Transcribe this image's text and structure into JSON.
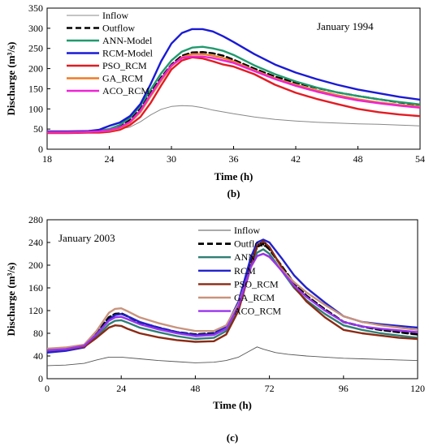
{
  "chart_data": [
    {
      "id": "b",
      "type": "line",
      "label": "(b)",
      "annotation": "January  1994",
      "xlabel": "Time (h)",
      "ylabel": "Discharge (m³/s)",
      "xlim": [
        18,
        54
      ],
      "ylim": [
        0,
        350
      ],
      "xticks": [
        18,
        24,
        30,
        36,
        42,
        48,
        54
      ],
      "yticks": [
        0,
        50,
        100,
        150,
        200,
        250,
        300,
        350
      ],
      "grid": false,
      "legend_position": "top-left",
      "series": [
        {
          "name": "Inflow",
          "color": "#888888",
          "width": 1.0,
          "dash": "",
          "x": [
            18,
            20,
            22,
            24,
            26,
            27,
            28,
            29,
            30,
            31,
            32,
            33,
            34,
            36,
            38,
            40,
            42,
            44,
            46,
            48,
            50,
            52,
            54
          ],
          "y": [
            43,
            43,
            44,
            46,
            55,
            68,
            85,
            99,
            106,
            108,
            107,
            103,
            97,
            88,
            80,
            74,
            70,
            67,
            65,
            63,
            62,
            60,
            58
          ]
        },
        {
          "name": "Outflow",
          "color": "#000000",
          "width": 2.4,
          "dash": "7,4",
          "x": [
            18,
            20,
            22,
            23,
            24,
            25,
            26,
            27,
            28,
            29,
            30,
            31,
            32,
            33,
            34,
            35,
            36,
            38,
            40,
            42,
            44,
            46,
            48,
            50,
            52,
            54
          ],
          "y": [
            43,
            43,
            44,
            45,
            48,
            56,
            72,
            100,
            140,
            178,
            210,
            232,
            240,
            241,
            238,
            232,
            222,
            200,
            180,
            165,
            152,
            141,
            132,
            124,
            116,
            110
          ]
        },
        {
          "name": "ANN-Model",
          "color": "#1f9a6e",
          "width": 2.4,
          "dash": "",
          "x": [
            18,
            20,
            22,
            23,
            24,
            25,
            26,
            27,
            28,
            29,
            30,
            31,
            32,
            33,
            34,
            35,
            36,
            38,
            40,
            42,
            44,
            46,
            48,
            50,
            52,
            54
          ],
          "y": [
            44,
            44,
            45,
            46,
            50,
            60,
            78,
            108,
            148,
            188,
            220,
            242,
            252,
            254,
            250,
            244,
            234,
            208,
            186,
            168,
            153,
            141,
            132,
            124,
            117,
            111
          ]
        },
        {
          "name": "RCM-Model",
          "color": "#1a1ad6",
          "width": 2.4,
          "dash": "",
          "x": [
            18,
            20,
            22,
            23,
            24,
            25,
            26,
            27,
            28,
            29,
            30,
            31,
            32,
            33,
            34,
            35,
            36,
            38,
            40,
            42,
            44,
            46,
            48,
            50,
            52,
            54
          ],
          "y": [
            44,
            44,
            45,
            48,
            58,
            66,
            82,
            112,
            162,
            218,
            262,
            288,
            298,
            298,
            292,
            280,
            266,
            236,
            210,
            190,
            174,
            160,
            148,
            139,
            130,
            123
          ]
        },
        {
          "name": "PSO_RCM",
          "color": "#e31b23",
          "width": 2.4,
          "dash": "",
          "x": [
            18,
            20,
            22,
            23,
            24,
            25,
            26,
            27,
            28,
            29,
            30,
            31,
            32,
            33,
            34,
            35,
            36,
            38,
            40,
            42,
            44,
            46,
            48,
            50,
            52,
            54
          ],
          "y": [
            40,
            40,
            41,
            41,
            43,
            48,
            60,
            80,
            115,
            158,
            198,
            220,
            228,
            225,
            218,
            210,
            205,
            186,
            160,
            140,
            125,
            112,
            100,
            92,
            86,
            82
          ]
        },
        {
          "name": "GA_RCM",
          "color": "#f07a26",
          "width": 2.4,
          "dash": "",
          "x": [
            18,
            20,
            22,
            23,
            24,
            25,
            26,
            27,
            28,
            29,
            30,
            31,
            32,
            33,
            34,
            35,
            36,
            38,
            40,
            42,
            44,
            46,
            48,
            50,
            52,
            54
          ],
          "y": [
            42,
            42,
            43,
            44,
            46,
            52,
            66,
            92,
            132,
            170,
            206,
            228,
            236,
            236,
            232,
            226,
            218,
            196,
            176,
            160,
            146,
            134,
            124,
            116,
            110,
            106
          ]
        },
        {
          "name": "ACO_RCM",
          "color": "#ee22d6",
          "width": 2.4,
          "dash": "",
          "x": [
            18,
            20,
            22,
            23,
            24,
            25,
            26,
            27,
            28,
            29,
            30,
            31,
            32,
            33,
            34,
            35,
            36,
            38,
            40,
            42,
            44,
            46,
            48,
            50,
            52,
            54
          ],
          "y": [
            42,
            42,
            43,
            44,
            47,
            54,
            68,
            96,
            136,
            174,
            208,
            226,
            230,
            230,
            226,
            220,
            214,
            194,
            174,
            157,
            143,
            131,
            121,
            114,
            108,
            103
          ]
        }
      ]
    },
    {
      "id": "c",
      "type": "line",
      "label": "(c)",
      "annotation": "January 2003",
      "xlabel": "Time (h)",
      "ylabel": "Discharge (m³/s)",
      "xlim": [
        0,
        120
      ],
      "ylim": [
        0,
        280
      ],
      "xticks": [
        0,
        24,
        48,
        72,
        96,
        120
      ],
      "yticks": [
        0,
        40,
        80,
        120,
        160,
        200,
        240,
        280
      ],
      "grid": false,
      "legend_position": "top-center",
      "series": [
        {
          "name": "Inflow",
          "color": "#555555",
          "width": 0.9,
          "dash": "",
          "x": [
            0,
            6,
            12,
            16,
            20,
            24,
            30,
            36,
            42,
            48,
            54,
            58,
            62,
            66,
            68,
            70,
            74,
            78,
            84,
            90,
            96,
            102,
            108,
            114,
            120
          ],
          "y": [
            23,
            24,
            27,
            33,
            38,
            38,
            35,
            32,
            30,
            28,
            29,
            32,
            38,
            50,
            56,
            52,
            46,
            43,
            40,
            38,
            36,
            35,
            34,
            33,
            32
          ]
        },
        {
          "name": "Outflow",
          "color": "#000000",
          "width": 2.8,
          "dash": "7,4",
          "x": [
            0,
            6,
            12,
            16,
            20,
            22,
            24,
            26,
            30,
            36,
            42,
            48,
            54,
            58,
            62,
            66,
            68,
            70,
            72,
            76,
            80,
            84,
            90,
            96,
            102,
            108,
            114,
            120
          ],
          "y": [
            50,
            52,
            58,
            80,
            108,
            114,
            115,
            110,
            99,
            90,
            82,
            78,
            80,
            92,
            132,
            205,
            232,
            238,
            228,
            198,
            168,
            146,
            122,
            100,
            92,
            86,
            82,
            78
          ]
        },
        {
          "name": "ANN",
          "color": "#2f7f74",
          "width": 2.4,
          "dash": "",
          "x": [
            0,
            6,
            12,
            16,
            20,
            22,
            24,
            26,
            30,
            36,
            42,
            48,
            54,
            58,
            62,
            66,
            68,
            70,
            72,
            76,
            80,
            84,
            90,
            96,
            102,
            108,
            114,
            120
          ],
          "y": [
            48,
            50,
            56,
            74,
            96,
            102,
            103,
            99,
            90,
            82,
            75,
            70,
            72,
            84,
            124,
            196,
            222,
            228,
            220,
            190,
            160,
            138,
            114,
            94,
            86,
            80,
            76,
            72
          ]
        },
        {
          "name": "RCM",
          "color": "#2222cc",
          "width": 2.4,
          "dash": "",
          "x": [
            0,
            6,
            12,
            16,
            20,
            22,
            24,
            26,
            30,
            36,
            42,
            48,
            54,
            58,
            62,
            66,
            68,
            70,
            72,
            76,
            80,
            84,
            90,
            96,
            102,
            108,
            114,
            120
          ],
          "y": [
            46,
            49,
            55,
            78,
            104,
            112,
            114,
            110,
            100,
            90,
            82,
            77,
            79,
            92,
            136,
            214,
            240,
            245,
            240,
            212,
            182,
            160,
            134,
            110,
            100,
            96,
            93,
            90
          ]
        },
        {
          "name": "PSO_RCM",
          "color": "#8b2a14",
          "width": 2.4,
          "dash": "",
          "x": [
            0,
            6,
            12,
            16,
            20,
            22,
            24,
            26,
            30,
            36,
            42,
            48,
            54,
            58,
            62,
            66,
            68,
            70,
            72,
            76,
            80,
            84,
            90,
            96,
            102,
            108,
            114,
            120
          ],
          "y": [
            50,
            52,
            56,
            72,
            90,
            94,
            93,
            88,
            80,
            73,
            68,
            65,
            66,
            78,
            120,
            198,
            234,
            242,
            232,
            196,
            162,
            136,
            108,
            86,
            80,
            76,
            72,
            70
          ]
        },
        {
          "name": "GA_RCM",
          "color": "#c9937c",
          "width": 2.4,
          "dash": "",
          "x": [
            0,
            6,
            12,
            16,
            20,
            22,
            24,
            26,
            30,
            36,
            42,
            48,
            54,
            58,
            62,
            66,
            68,
            70,
            72,
            76,
            80,
            84,
            90,
            96,
            102,
            108,
            114,
            120
          ],
          "y": [
            53,
            55,
            60,
            84,
            116,
            123,
            124,
            119,
            108,
            98,
            90,
            84,
            84,
            94,
            132,
            196,
            216,
            220,
            214,
            192,
            170,
            152,
            130,
            110,
            100,
            94,
            90,
            86
          ]
        },
        {
          "name": "ACO_RCM",
          "color": "#9933ee",
          "width": 2.4,
          "dash": "",
          "x": [
            0,
            6,
            12,
            16,
            20,
            22,
            24,
            26,
            30,
            36,
            42,
            48,
            54,
            58,
            62,
            66,
            68,
            70,
            72,
            76,
            80,
            84,
            90,
            96,
            102,
            108,
            114,
            120
          ],
          "y": [
            50,
            52,
            58,
            78,
            102,
            108,
            109,
            105,
            96,
            87,
            80,
            75,
            77,
            88,
            128,
            198,
            216,
            220,
            215,
            190,
            164,
            144,
            120,
            100,
            92,
            88,
            85,
            82
          ]
        }
      ]
    }
  ]
}
